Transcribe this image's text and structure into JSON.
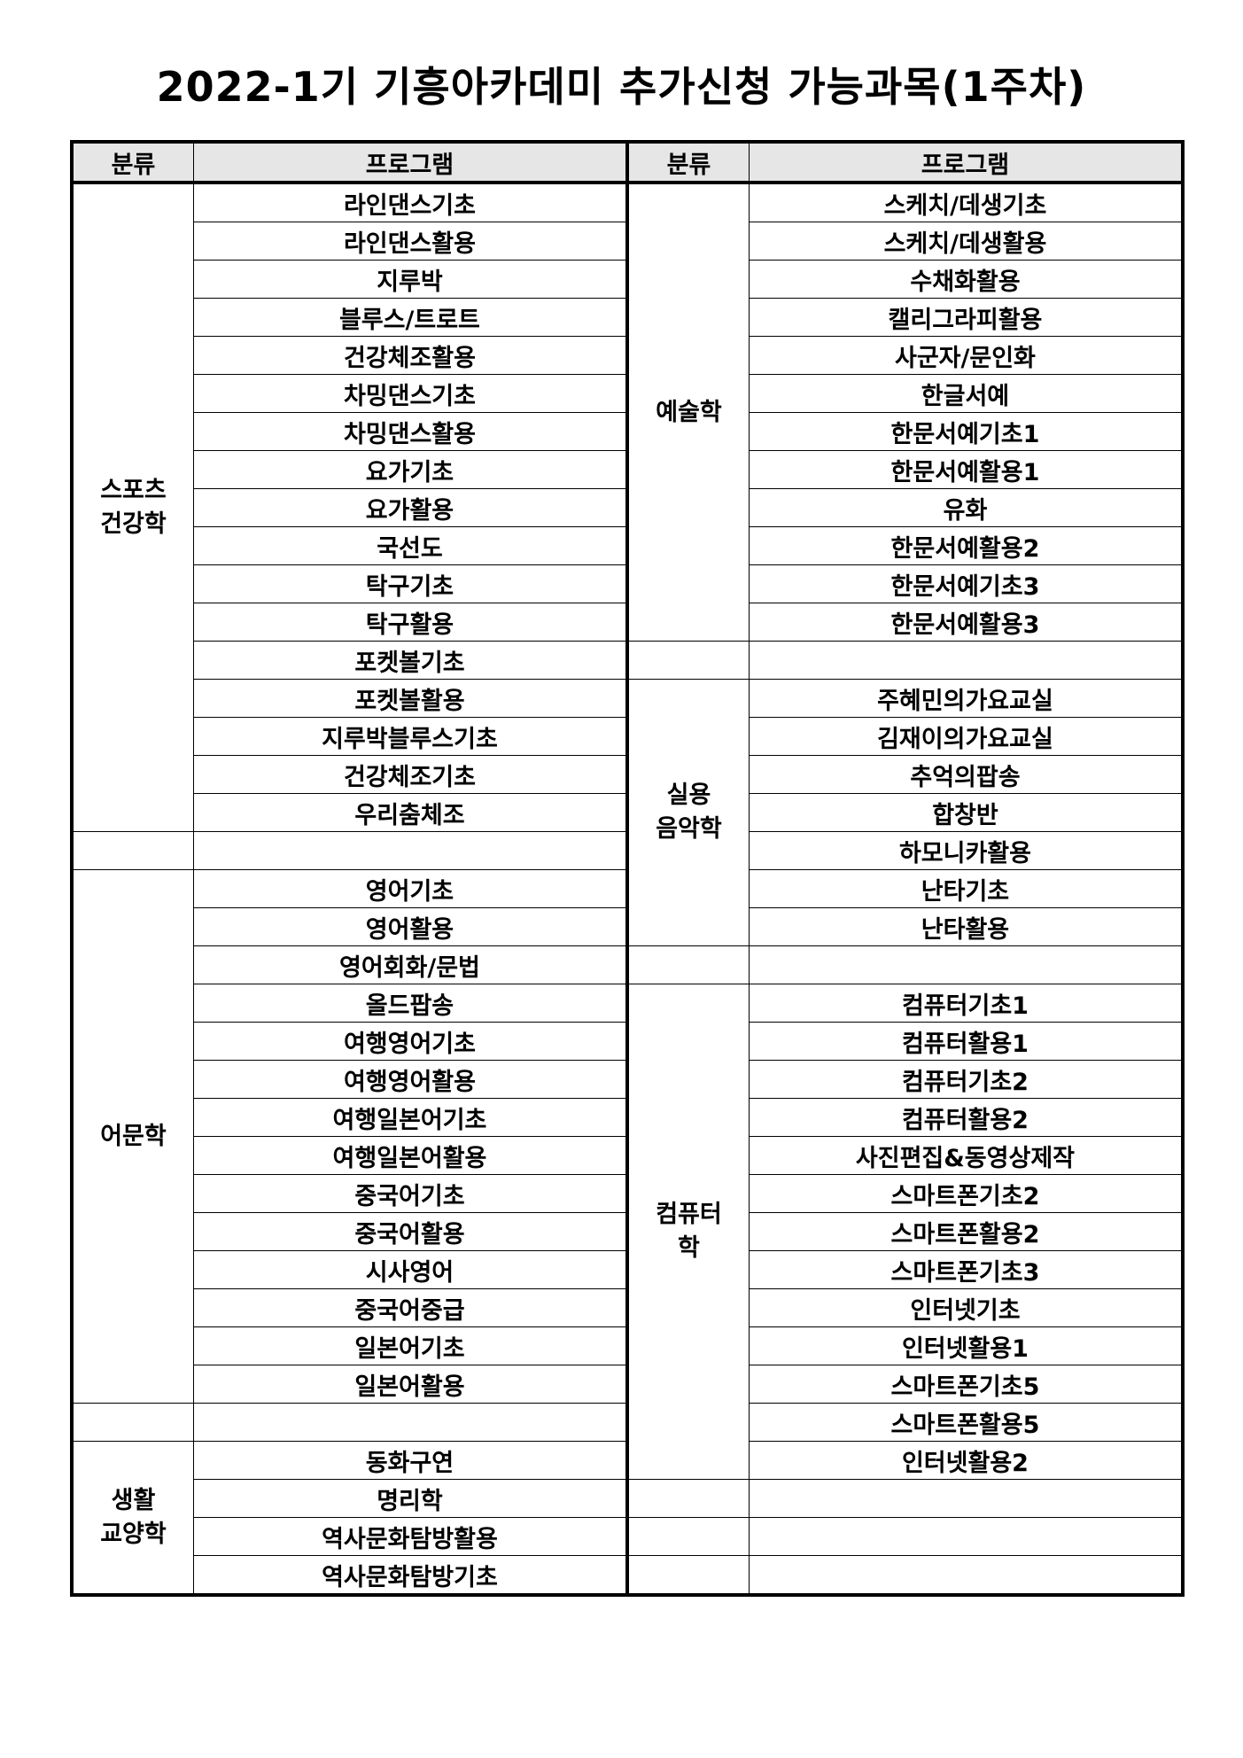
{
  "title": "2022-1기 기흥아카데미 추가신청 가능과목(1주차)",
  "headers": {
    "category": "분류",
    "program": "프로그램"
  },
  "left_groups": [
    {
      "category": "스포츠\n건강학",
      "programs": [
        "라인댄스기초",
        "라인댄스활용",
        "지루박",
        "블루스/트로트",
        "건강체조활용",
        "차밍댄스기초",
        "차밍댄스활용",
        "요가기초",
        "요가활용",
        "국선도",
        "탁구기초",
        "탁구활용",
        "포켓볼기초",
        "포켓볼활용",
        "지루박블루스기초",
        "건강체조기초",
        "우리춤체조"
      ]
    },
    {
      "category": "",
      "programs": [
        ""
      ]
    },
    {
      "category": "어문학",
      "programs": [
        "영어기초",
        "영어활용",
        "영어회화/문법",
        "올드팝송",
        "여행영어기초",
        "여행영어활용",
        "여행일본어기초",
        "여행일본어활용",
        "중국어기초",
        "중국어활용",
        "시사영어",
        "중국어중급",
        "일본어기초",
        "일본어활용"
      ]
    },
    {
      "category": "",
      "programs": [
        ""
      ]
    },
    {
      "category": "생활\n교양학",
      "programs": [
        "동화구연",
        "명리학",
        "역사문화탐방활용",
        "역사문화탐방기초"
      ]
    }
  ],
  "right_groups": [
    {
      "category": "예술학",
      "programs": [
        "스케치/데생기초",
        "스케치/데생활용",
        "수채화활용",
        "캘리그라피활용",
        "사군자/문인화",
        "한글서예",
        "한문서예기초1",
        "한문서예활용1",
        "유화",
        "한문서예활용2",
        "한문서예기초3",
        "한문서예활용3"
      ]
    },
    {
      "category": "",
      "programs": [
        ""
      ]
    },
    {
      "category": "실용\n음악학",
      "programs": [
        "주혜민의가요교실",
        "김재이의가요교실",
        "추억의팝송",
        "합창반",
        "하모니카활용",
        "난타기초",
        "난타활용"
      ]
    },
    {
      "category": "",
      "programs": [
        ""
      ]
    },
    {
      "category": "컴퓨터\n학",
      "programs": [
        "컴퓨터기초1",
        "컴퓨터활용1",
        "컴퓨터기초2",
        "컴퓨터활용2",
        "사진편집&동영상제작",
        "스마트폰기초2",
        "스마트폰활용2",
        "스마트폰기초3",
        "인터넷기초",
        "인터넷활용1",
        "스마트폰기초5",
        "스마트폰활용5",
        "인터넷활용2"
      ]
    },
    {
      "category": "",
      "programs": [
        ""
      ]
    },
    {
      "category": "",
      "programs": [
        ""
      ]
    },
    {
      "category": "",
      "programs": [
        ""
      ]
    }
  ]
}
